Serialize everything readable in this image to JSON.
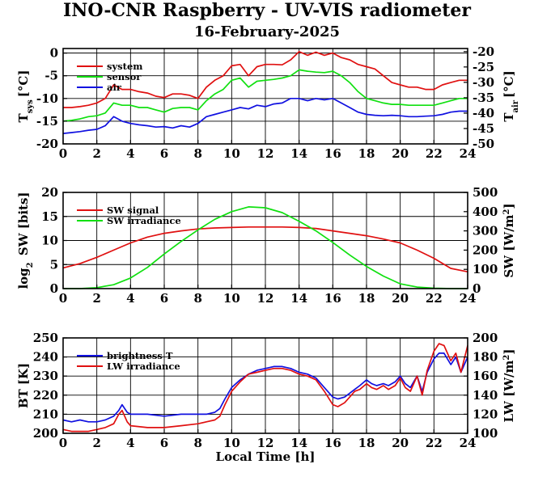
{
  "title": "INO-CNR Raspberry - UV-VIS radiometer",
  "subtitle": "16-February-2025",
  "colors": {
    "red": "#e01010",
    "green": "#10e010",
    "blue": "#1010e0"
  },
  "chart_data": [
    {
      "type": "line",
      "x_ticks": [
        0,
        2,
        4,
        6,
        8,
        10,
        12,
        14,
        16,
        18,
        20,
        22,
        24
      ],
      "xlim": [
        0,
        24
      ],
      "ylabel": "T",
      "ylabel_sub": "sys",
      "ylabel_unit": "[°C]",
      "ylim": [
        -20,
        1
      ],
      "y_ticks": [
        0,
        -5,
        -10,
        -15,
        -20
      ],
      "y2label": "T",
      "y2label_sub": "air",
      "y2label_unit": "[°C]",
      "y2lim": [
        -50,
        -19
      ],
      "y2_ticks": [
        -20,
        -25,
        -30,
        -35,
        -40,
        -45,
        -50
      ],
      "legend": "top-left",
      "series": [
        {
          "name": "system",
          "color": "#e01010",
          "axis": "left",
          "x": [
            0,
            0.5,
            1,
            1.5,
            2,
            2.5,
            3,
            3.5,
            4,
            4.5,
            5,
            5.5,
            6,
            6.5,
            7,
            7.5,
            8,
            8.5,
            9,
            9.5,
            10,
            10.5,
            11,
            11.5,
            12,
            12.5,
            13,
            13.5,
            14,
            14.5,
            15,
            15.5,
            16,
            16.5,
            17,
            17.5,
            18,
            18.5,
            19,
            19.5,
            20,
            20.5,
            21,
            21.5,
            22,
            22.5,
            23,
            23.5,
            24
          ],
          "y": [
            -12,
            -12,
            -11.8,
            -11.5,
            -11,
            -10,
            -7,
            -8,
            -8,
            -8.5,
            -8.8,
            -9.5,
            -9.8,
            -9,
            -9,
            -9.3,
            -10,
            -7.5,
            -6,
            -5,
            -2.8,
            -2.5,
            -5,
            -3,
            -2.5,
            -2.5,
            -2.6,
            -1.5,
            0.3,
            -0.5,
            0.2,
            -0.5,
            0,
            -1,
            -1.5,
            -2.5,
            -3,
            -3.5,
            -5,
            -6.5,
            -7,
            -7.5,
            -7.5,
            -8,
            -8,
            -7,
            -6.5,
            -6,
            -6
          ]
        },
        {
          "name": "sensor",
          "color": "#10e010",
          "axis": "left",
          "x": [
            0,
            0.5,
            1,
            1.5,
            2,
            2.5,
            3,
            3.5,
            4,
            4.5,
            5,
            5.5,
            6,
            6.5,
            7,
            7.5,
            8,
            8.5,
            9,
            9.5,
            10,
            10.5,
            11,
            11.5,
            12,
            12.5,
            13,
            13.5,
            14,
            14.5,
            15,
            15.5,
            16,
            16.5,
            17,
            17.5,
            18,
            18.5,
            19,
            19.5,
            20,
            20.5,
            21,
            21.5,
            22,
            22.5,
            23,
            23.5,
            24
          ],
          "y": [
            -15,
            -14.8,
            -14.5,
            -14,
            -13.8,
            -13.2,
            -11,
            -11.5,
            -11.5,
            -12,
            -12,
            -12.5,
            -13,
            -12.2,
            -12,
            -12,
            -12.5,
            -10.5,
            -9,
            -8,
            -6,
            -5.5,
            -7.5,
            -6.2,
            -6,
            -5.8,
            -5.5,
            -5,
            -3.7,
            -4,
            -4.2,
            -4.3,
            -4,
            -5,
            -6.5,
            -8.5,
            -10,
            -10.5,
            -11,
            -11.3,
            -11.3,
            -11.5,
            -11.5,
            -11.5,
            -11.5,
            -11,
            -10.5,
            -10,
            -10
          ]
        },
        {
          "name": "air",
          "color": "#1010e0",
          "axis": "left",
          "x": [
            0,
            0.5,
            1,
            1.5,
            2,
            2.5,
            3,
            3.5,
            4,
            4.5,
            5,
            5.5,
            6,
            6.5,
            7,
            7.5,
            8,
            8.5,
            9,
            9.5,
            10,
            10.5,
            11,
            11.5,
            12,
            12.5,
            13,
            13.5,
            14,
            14.5,
            15,
            15.5,
            16,
            16.5,
            17,
            17.5,
            18,
            18.5,
            19,
            19.5,
            20,
            20.5,
            21,
            21.5,
            22,
            22.5,
            23,
            23.5,
            24
          ],
          "y": [
            -17.7,
            -17.5,
            -17.3,
            -17,
            -16.8,
            -16,
            -14,
            -15,
            -15.5,
            -15.8,
            -16,
            -16.3,
            -16.2,
            -16.5,
            -16,
            -16.3,
            -15.5,
            -14,
            -13.5,
            -13,
            -12.5,
            -12,
            -12.3,
            -11.5,
            -11.8,
            -11.2,
            -11,
            -10,
            -10,
            -10.5,
            -10,
            -10.3,
            -10,
            -11,
            -12,
            -13,
            -13.5,
            -13.7,
            -13.8,
            -13.7,
            -13.8,
            -14,
            -14,
            -13.9,
            -13.8,
            -13.5,
            -13,
            -12.8,
            -12.8
          ]
        }
      ]
    },
    {
      "type": "line",
      "x_ticks": [
        0,
        2,
        4,
        6,
        8,
        10,
        12,
        14,
        16,
        18,
        20,
        22,
        24
      ],
      "xlim": [
        0,
        24
      ],
      "ylabel": "log",
      "ylabel_sub": "2",
      "ylabel_unit": " SW [bits]",
      "ylim": [
        0,
        20
      ],
      "y_ticks": [
        0,
        5,
        10,
        15,
        20
      ],
      "y2label": "SW [W/m",
      "y2label_sup": "2",
      "y2label_end": "]",
      "y2lim": [
        0,
        500
      ],
      "y2_ticks": [
        0,
        100,
        200,
        300,
        400,
        500
      ],
      "legend": "top-left",
      "series": [
        {
          "name": "SW signal",
          "color": "#e01010",
          "axis": "left",
          "x": [
            0,
            1,
            2,
            3,
            4,
            5,
            6,
            7,
            8,
            9,
            10,
            11,
            12,
            13,
            14,
            15,
            16,
            17,
            18,
            19,
            20,
            21,
            22,
            23,
            24
          ],
          "y": [
            4.3,
            5.2,
            6.5,
            8,
            9.5,
            10.7,
            11.5,
            12,
            12.4,
            12.6,
            12.7,
            12.8,
            12.8,
            12.8,
            12.7,
            12.5,
            12,
            11.5,
            11,
            10.3,
            9.5,
            8,
            6.3,
            4.2,
            3.5
          ]
        },
        {
          "name": "SW irradiance",
          "color": "#10e010",
          "axis": "right",
          "x": [
            0,
            1,
            2,
            3,
            4,
            5,
            6,
            7,
            8,
            9,
            10,
            11,
            12,
            13,
            14,
            15,
            16,
            17,
            18,
            19,
            20,
            21,
            22,
            23,
            24
          ],
          "y": [
            0,
            0,
            5,
            20,
            55,
            110,
            180,
            245,
            305,
            360,
            400,
            425,
            420,
            395,
            350,
            300,
            240,
            175,
            115,
            65,
            25,
            8,
            2,
            0,
            0
          ]
        }
      ]
    },
    {
      "type": "line",
      "x_ticks": [
        0,
        2,
        4,
        6,
        8,
        10,
        12,
        14,
        16,
        18,
        20,
        22,
        24
      ],
      "xlim": [
        0,
        24
      ],
      "xlabel": "Local Time [h]",
      "ylabel": "BT [K]",
      "ylim": [
        200,
        250
      ],
      "y_ticks": [
        200,
        210,
        220,
        230,
        240,
        250
      ],
      "y2label": "LW [W/m",
      "y2label_sup": "2",
      "y2label_end": "]",
      "y2lim": [
        100,
        200
      ],
      "y2_ticks": [
        100,
        120,
        140,
        160,
        180,
        200
      ],
      "legend": "top-left",
      "series": [
        {
          "name": "brightness T",
          "color": "#1010e0",
          "axis": "left",
          "x": [
            0,
            0.5,
            1,
            1.5,
            2,
            2.5,
            3,
            3.3,
            3.5,
            3.8,
            4,
            5,
            6,
            7,
            8,
            8.5,
            9,
            9.3,
            9.6,
            10,
            10.5,
            11,
            11.5,
            12,
            12.5,
            13,
            13.5,
            14,
            14.5,
            15,
            15.5,
            16,
            16.3,
            16.7,
            17,
            17.3,
            17.6,
            18,
            18.3,
            18.6,
            19,
            19.3,
            19.7,
            20,
            20.3,
            20.6,
            21,
            21.3,
            21.6,
            22,
            22.3,
            22.6,
            23,
            23.3,
            23.6,
            24
          ],
          "y": [
            207,
            206,
            207,
            206,
            206,
            207,
            209,
            212,
            215,
            211,
            210,
            210,
            209,
            210,
            210,
            210,
            211,
            213,
            218,
            224,
            228,
            231,
            233,
            234,
            235,
            235,
            234,
            232,
            231,
            229,
            224,
            219,
            218,
            219,
            221,
            223,
            225,
            228,
            226,
            225,
            226,
            225,
            227,
            230,
            226,
            224,
            230,
            222,
            232,
            239,
            242,
            242,
            236,
            240,
            232,
            240
          ]
        },
        {
          "name": "LW irradiance",
          "color": "#e01010",
          "axis": "left",
          "x": [
            0,
            0.5,
            1,
            1.5,
            2,
            2.5,
            3,
            3.3,
            3.5,
            3.8,
            4,
            5,
            6,
            7,
            8,
            8.5,
            9,
            9.3,
            9.6,
            10,
            10.5,
            11,
            11.5,
            12,
            12.5,
            13,
            13.5,
            14,
            14.5,
            15,
            15.5,
            16,
            16.3,
            16.7,
            17,
            17.3,
            17.6,
            18,
            18.3,
            18.6,
            19,
            19.3,
            19.7,
            20,
            20.3,
            20.6,
            21,
            21.3,
            21.6,
            22,
            22.3,
            22.6,
            23,
            23.3,
            23.6,
            24
          ],
          "y": [
            202,
            201,
            201,
            201,
            202,
            203,
            205,
            210,
            212,
            206,
            204,
            203,
            203,
            204,
            205,
            206,
            207,
            209,
            215,
            222,
            227,
            231,
            232,
            233,
            234,
            234,
            233,
            231,
            230,
            228,
            222,
            215,
            214,
            216,
            219,
            222,
            223,
            226,
            224,
            223,
            225,
            223,
            225,
            229,
            224,
            222,
            230,
            220,
            233,
            243,
            247,
            246,
            238,
            242,
            232,
            246
          ]
        }
      ]
    }
  ]
}
